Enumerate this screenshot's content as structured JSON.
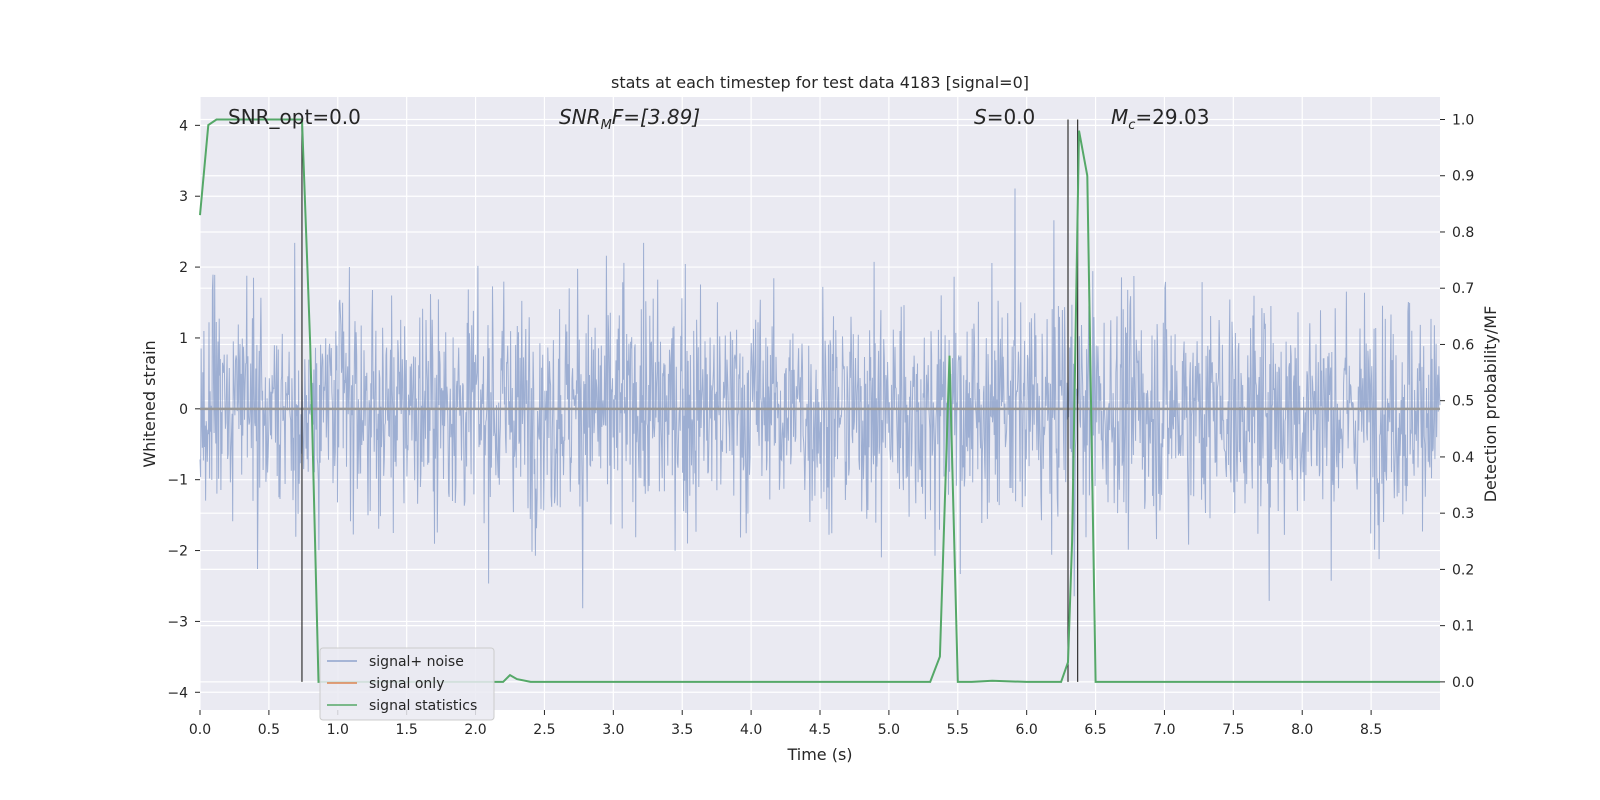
{
  "chart_data": {
    "type": "line",
    "title": "stats at each timestep for test data 4183 [signal=0]",
    "xlabel": "Time (s)",
    "ylabel": "Whitened strain",
    "ylabel_right": "Detection probability/MF",
    "xlim": [
      0,
      9.0
    ],
    "ylim": [
      -4.25,
      4.4
    ],
    "ylim_right": [
      -0.05,
      1.04
    ],
    "x_ticks": [
      0.0,
      0.5,
      1.0,
      1.5,
      2.0,
      2.5,
      3.0,
      3.5,
      4.0,
      4.5,
      5.0,
      5.5,
      6.0,
      6.5,
      7.0,
      7.5,
      8.0,
      8.5
    ],
    "x_tick_labels": [
      "0.0",
      "0.5",
      "1.0",
      "1.5",
      "2.0",
      "2.5",
      "3.0",
      "3.5",
      "4.0",
      "4.5",
      "5.0",
      "5.5",
      "6.0",
      "6.5",
      "7.0",
      "7.5",
      "8.0",
      "8.5"
    ],
    "y_ticks": [
      4,
      3,
      2,
      1,
      0,
      -1,
      -2,
      -3,
      -4
    ],
    "y_tick_labels": [
      "4",
      "3",
      "2",
      "1",
      "0",
      "−1",
      "−2",
      "−3",
      "−4"
    ],
    "y_ticks_right": [
      1.0,
      0.9,
      0.8,
      0.7,
      0.6,
      0.5,
      0.4,
      0.3,
      0.2,
      0.1,
      0.0
    ],
    "y_tick_labels_right": [
      "1.0",
      "0.9",
      "0.8",
      "0.7",
      "0.6",
      "0.5",
      "0.4",
      "0.3",
      "0.2",
      "0.1",
      "0.0"
    ],
    "grid": true,
    "legend_position": "lower-left",
    "annotations": {
      "snr_opt": "SNR_opt=0.0",
      "snr_mf_prefix": "SNR",
      "snr_mf_sub": "M",
      "snr_mf_suffix": "F=[3.89]",
      "s_prefix": "S",
      "s_suffix": "=0.0",
      "mc_prefix": "M",
      "mc_sub": "c",
      "mc_suffix": "=29.03"
    },
    "series": [
      {
        "name": "signal+ noise",
        "color": "#8fa3cc",
        "kind": "noise",
        "description_values": "whitened strain noise, amplitude roughly within ±4"
      },
      {
        "name": "signal only",
        "color": "#dd8452",
        "kind": "flat",
        "values_const": 0.0
      },
      {
        "name": "signal statistics",
        "color": "#55a868",
        "kind": "line",
        "axis": "right",
        "x": [
          0.0,
          0.06,
          0.12,
          0.2,
          0.3,
          0.4,
          0.5,
          0.6,
          0.7,
          0.74,
          0.8,
          0.86,
          0.9,
          1.0,
          1.5,
          2.0,
          2.1,
          2.2,
          2.25,
          2.3,
          2.4,
          2.5,
          3.0,
          4.0,
          5.0,
          5.3,
          5.37,
          5.44,
          5.5,
          5.6,
          5.75,
          6.0,
          6.25,
          6.3,
          6.33,
          6.38,
          6.44,
          6.5,
          6.6,
          7.0,
          8.0,
          9.0
        ],
        "y": [
          0.83,
          0.99,
          1.0,
          1.0,
          1.0,
          1.0,
          1.0,
          1.0,
          1.0,
          1.0,
          0.6,
          0.0,
          0.0,
          0.0,
          0.0,
          0.0,
          0.0,
          0.0,
          0.012,
          0.005,
          0.0,
          0.0,
          0.0,
          0.0,
          0.0,
          0.0,
          0.045,
          0.58,
          0.0,
          0.0,
          0.002,
          0.0,
          0.0,
          0.035,
          0.25,
          0.98,
          0.9,
          0.0,
          0.0,
          0.0,
          0.0,
          0.0
        ]
      }
    ],
    "vertical_markers_x": [
      0.74,
      6.3,
      6.37
    ]
  }
}
